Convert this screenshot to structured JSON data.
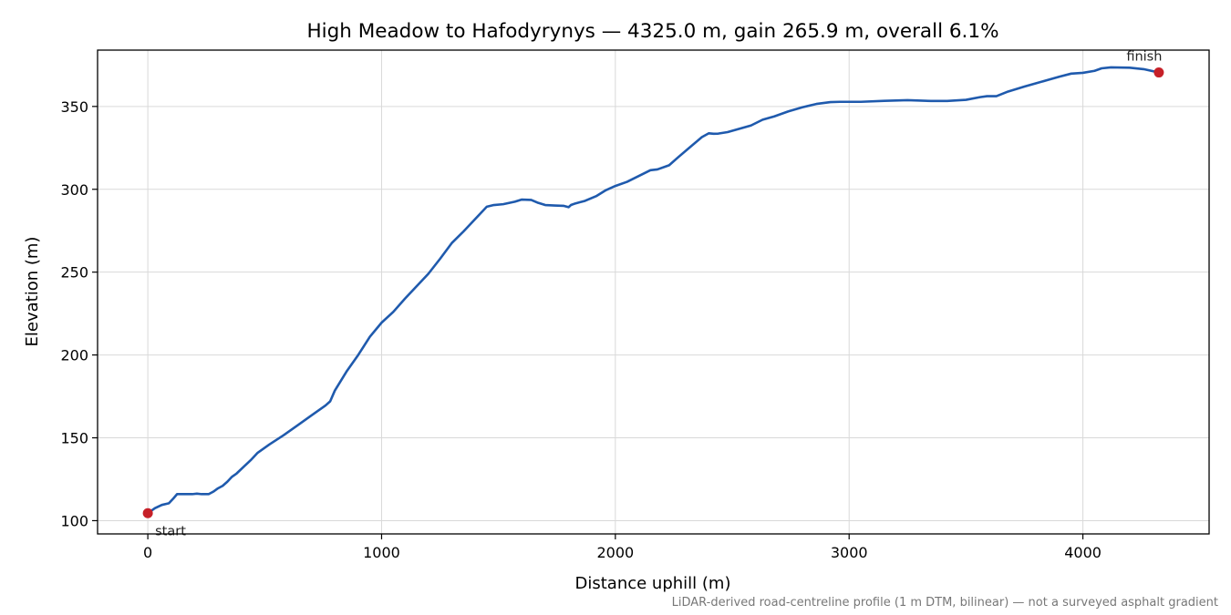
{
  "chart_data": {
    "type": "line",
    "title": "High Meadow to Hafodyrynys — 4325.0 m, gain 265.9 m, overall 6.1%",
    "xlabel": "Distance uphill (m)",
    "ylabel": "Elevation (m)",
    "xlim": [
      -215,
      4540
    ],
    "ylim": [
      92,
      384
    ],
    "x_ticks": [
      0,
      1000,
      2000,
      3000,
      4000
    ],
    "y_ticks": [
      100,
      150,
      200,
      250,
      300,
      350
    ],
    "x_tick_labels": [
      "0",
      "1000",
      "2000",
      "3000",
      "4000"
    ],
    "y_tick_labels": [
      "100",
      "150",
      "200",
      "250",
      "300",
      "350"
    ],
    "grid": true,
    "line_color": "#1f5aad",
    "marker_color": "#c62028",
    "series": [
      {
        "x": [
          0,
          30,
          60,
          90,
          110,
          125,
          140,
          160,
          190,
          210,
          230,
          260,
          280,
          300,
          320,
          340,
          360,
          380,
          410,
          440,
          470,
          520,
          580,
          640,
          700,
          760,
          780,
          800,
          850,
          900,
          950,
          1000,
          1050,
          1100,
          1150,
          1200,
          1250,
          1300,
          1350,
          1400,
          1450,
          1480,
          1520,
          1570,
          1600,
          1640,
          1670,
          1700,
          1740,
          1780,
          1800,
          1810,
          1830,
          1870,
          1920,
          1960,
          2000,
          2050,
          2100,
          2150,
          2180,
          2230,
          2270,
          2320,
          2370,
          2400,
          2420,
          2440,
          2480,
          2530,
          2580,
          2630,
          2680,
          2740,
          2800,
          2860,
          2920,
          2960,
          3050,
          3150,
          3250,
          3350,
          3420,
          3500,
          3560,
          3590,
          3630,
          3680,
          3750,
          3800,
          3850,
          3900,
          3950,
          4000,
          4050,
          4080,
          4120,
          4200,
          4260,
          4325
        ],
        "y": [
          104.5,
          107.5,
          109.5,
          110.5,
          113.5,
          116.0,
          116.0,
          116.0,
          116.0,
          116.3,
          116.0,
          116.0,
          117.5,
          119.5,
          121.0,
          123.5,
          126.5,
          128.5,
          132.5,
          136.5,
          141.0,
          146.0,
          151.5,
          157.5,
          163.5,
          169.5,
          172.0,
          178.5,
          190.0,
          200.0,
          211.0,
          219.5,
          226.0,
          234.0,
          241.5,
          249.0,
          258.0,
          267.5,
          274.5,
          282.0,
          289.5,
          290.5,
          291.0,
          292.5,
          293.8,
          293.6,
          291.8,
          290.5,
          290.2,
          290.0,
          289.2,
          290.5,
          291.5,
          293.0,
          296.0,
          299.5,
          302.0,
          304.5,
          308.0,
          311.5,
          312.0,
          314.5,
          319.5,
          325.5,
          331.5,
          333.8,
          333.5,
          333.6,
          334.5,
          336.5,
          338.5,
          342.0,
          344.0,
          347.0,
          349.5,
          351.5,
          352.6,
          352.8,
          352.8,
          353.4,
          353.8,
          353.3,
          353.3,
          354.0,
          355.6,
          356.2,
          356.2,
          359.0,
          362.0,
          364.0,
          366.0,
          368.0,
          369.8,
          370.3,
          371.5,
          373.0,
          373.6,
          373.4,
          372.5,
          370.5
        ]
      }
    ],
    "points": [
      {
        "label": "start",
        "x": 0,
        "y": 104.5
      },
      {
        "label": "finish",
        "x": 4325,
        "y": 370.5
      }
    ],
    "footnote": "LiDAR-derived road-centreline profile (1 m DTM, bilinear) — not a surveyed asphalt gradient"
  }
}
